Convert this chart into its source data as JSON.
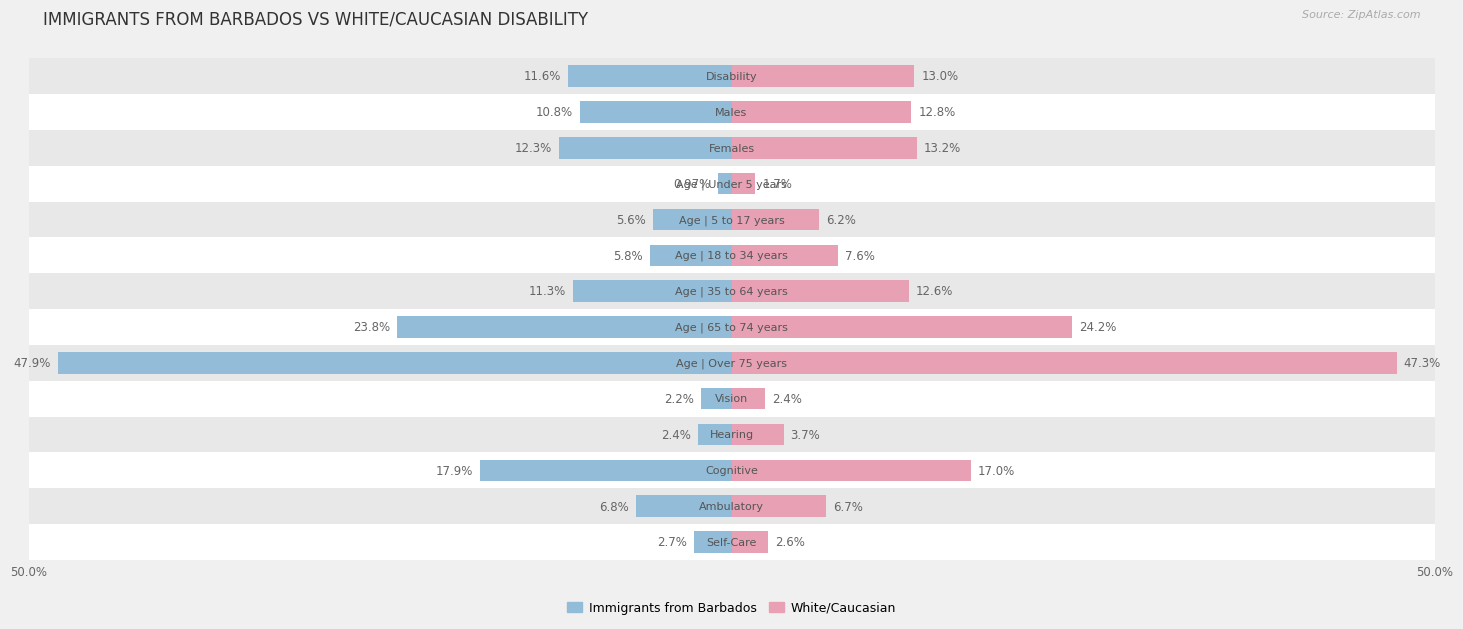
{
  "title": "IMMIGRANTS FROM BARBADOS VS WHITE/CAUCASIAN DISABILITY",
  "source": "Source: ZipAtlas.com",
  "categories": [
    "Disability",
    "Males",
    "Females",
    "Age | Under 5 years",
    "Age | 5 to 17 years",
    "Age | 18 to 34 years",
    "Age | 35 to 64 years",
    "Age | 65 to 74 years",
    "Age | Over 75 years",
    "Vision",
    "Hearing",
    "Cognitive",
    "Ambulatory",
    "Self-Care"
  ],
  "left_values": [
    11.6,
    10.8,
    12.3,
    0.97,
    5.6,
    5.8,
    11.3,
    23.8,
    47.9,
    2.2,
    2.4,
    17.9,
    6.8,
    2.7
  ],
  "right_values": [
    13.0,
    12.8,
    13.2,
    1.7,
    6.2,
    7.6,
    12.6,
    24.2,
    47.3,
    2.4,
    3.7,
    17.0,
    6.7,
    2.6
  ],
  "left_labels": [
    "11.6%",
    "10.8%",
    "12.3%",
    "0.97%",
    "5.6%",
    "5.8%",
    "11.3%",
    "23.8%",
    "47.9%",
    "2.2%",
    "2.4%",
    "17.9%",
    "6.8%",
    "2.7%"
  ],
  "right_labels": [
    "13.0%",
    "12.8%",
    "13.2%",
    "1.7%",
    "6.2%",
    "7.6%",
    "12.6%",
    "24.2%",
    "47.3%",
    "2.4%",
    "3.7%",
    "17.0%",
    "6.7%",
    "2.6%"
  ],
  "left_color": "#92bcd8",
  "right_color": "#e8a0b4",
  "bar_height": 0.6,
  "max_val": 50.0,
  "bg_light": "#ffffff",
  "bg_dark": "#e8e8e8",
  "legend_left": "Immigrants from Barbados",
  "legend_right": "White/Caucasian",
  "title_fontsize": 12,
  "label_fontsize": 8.5,
  "category_fontsize": 8,
  "tick_fontsize": 8.5
}
